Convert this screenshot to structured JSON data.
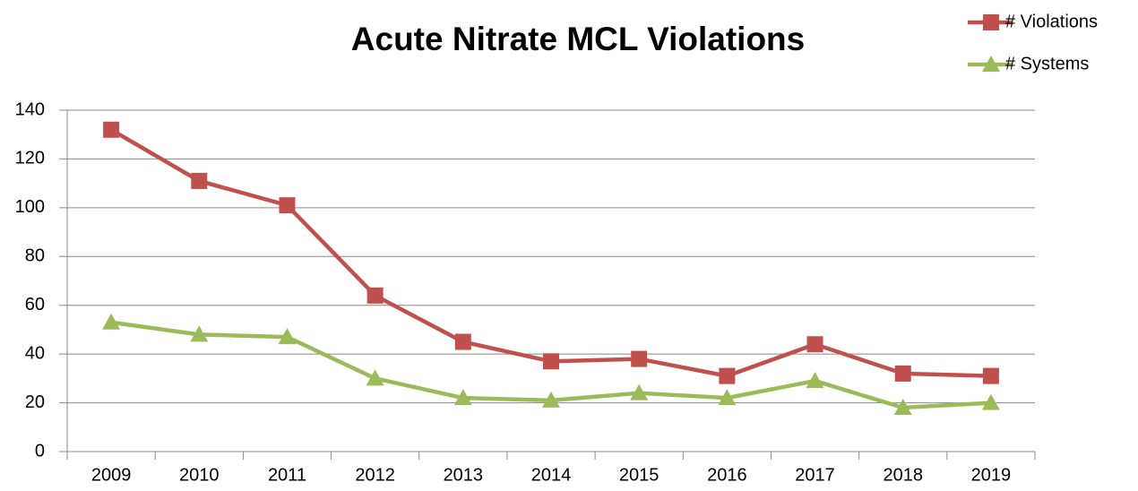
{
  "chart_data": {
    "type": "line",
    "title": "Acute Nitrate MCL Violations",
    "categories": [
      "2009",
      "2010",
      "2011",
      "2012",
      "2013",
      "2014",
      "2015",
      "2016",
      "2017",
      "2018",
      "2019"
    ],
    "series": [
      {
        "name": "# Violations",
        "color": "#c0504d",
        "marker": "square",
        "values": [
          132,
          111,
          101,
          64,
          45,
          37,
          38,
          31,
          44,
          32,
          31
        ]
      },
      {
        "name": "# Systems",
        "color": "#9bbb59",
        "marker": "triangle",
        "values": [
          53,
          48,
          47,
          30,
          22,
          21,
          24,
          22,
          29,
          18,
          20
        ]
      }
    ],
    "ylim": [
      0,
      140
    ],
    "yticks": [
      0,
      20,
      40,
      60,
      80,
      100,
      120,
      140
    ],
    "grid": true,
    "legend": "top-right"
  }
}
